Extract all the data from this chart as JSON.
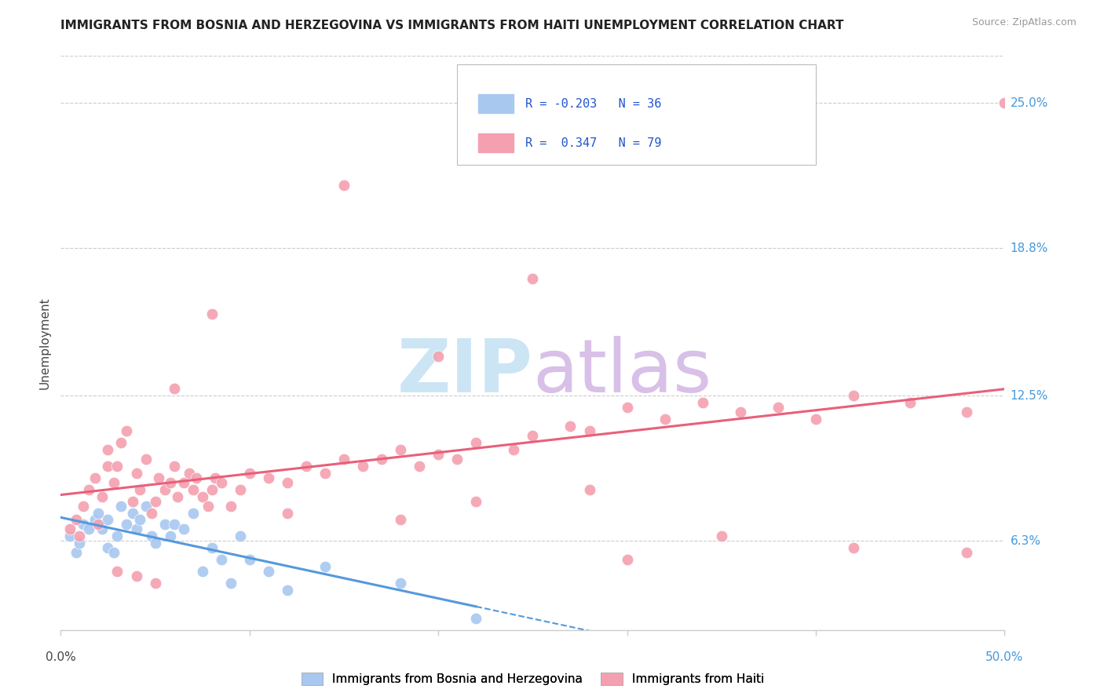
{
  "title": "IMMIGRANTS FROM BOSNIA AND HERZEGOVINA VS IMMIGRANTS FROM HAITI UNEMPLOYMENT CORRELATION CHART",
  "source": "Source: ZipAtlas.com",
  "ylabel": "Unemployment",
  "yticks": [
    6.3,
    12.5,
    18.8,
    25.0
  ],
  "ytick_labels": [
    "6.3%",
    "12.5%",
    "18.8%",
    "25.0%"
  ],
  "xmin": 0.0,
  "xmax": 0.5,
  "ymin": 2.5,
  "ymax": 27.0,
  "bosnia_color": "#a8c8f0",
  "haiti_color": "#f4a0b0",
  "bosnia_line_color": "#5599dd",
  "haiti_line_color": "#e8607a",
  "legend_text_color": "#2255cc",
  "ytick_color": "#4499dd",
  "source_color": "#999999",
  "title_color": "#222222",
  "grid_color": "#cccccc",
  "watermark_zip_color": "#cce5f5",
  "watermark_atlas_color": "#d8c0e8",
  "bosnia_scatter_x": [
    0.005,
    0.008,
    0.01,
    0.012,
    0.015,
    0.018,
    0.02,
    0.022,
    0.025,
    0.025,
    0.028,
    0.03,
    0.032,
    0.035,
    0.038,
    0.04,
    0.042,
    0.045,
    0.048,
    0.05,
    0.055,
    0.058,
    0.06,
    0.065,
    0.07,
    0.075,
    0.08,
    0.085,
    0.09,
    0.095,
    0.1,
    0.11,
    0.12,
    0.14,
    0.18,
    0.22
  ],
  "bosnia_scatter_y": [
    6.5,
    5.8,
    6.2,
    7.0,
    6.8,
    7.2,
    7.5,
    6.8,
    6.0,
    7.2,
    5.8,
    6.5,
    7.8,
    7.0,
    7.5,
    6.8,
    7.2,
    7.8,
    6.5,
    6.2,
    7.0,
    6.5,
    7.0,
    6.8,
    7.5,
    5.0,
    6.0,
    5.5,
    4.5,
    6.5,
    5.5,
    5.0,
    4.2,
    5.2,
    4.5,
    3.0
  ],
  "haiti_scatter_x": [
    0.005,
    0.008,
    0.01,
    0.012,
    0.015,
    0.018,
    0.02,
    0.022,
    0.025,
    0.025,
    0.028,
    0.03,
    0.032,
    0.035,
    0.038,
    0.04,
    0.042,
    0.045,
    0.048,
    0.05,
    0.052,
    0.055,
    0.058,
    0.06,
    0.062,
    0.065,
    0.068,
    0.07,
    0.072,
    0.075,
    0.078,
    0.08,
    0.082,
    0.085,
    0.09,
    0.095,
    0.1,
    0.11,
    0.12,
    0.13,
    0.14,
    0.15,
    0.16,
    0.17,
    0.18,
    0.19,
    0.2,
    0.21,
    0.22,
    0.24,
    0.25,
    0.27,
    0.28,
    0.3,
    0.32,
    0.34,
    0.36,
    0.38,
    0.4,
    0.42,
    0.45,
    0.48,
    0.3,
    0.35,
    0.42,
    0.2,
    0.25,
    0.15,
    0.08,
    0.06,
    0.05,
    0.04,
    0.03,
    0.18,
    0.12,
    0.22,
    0.28,
    0.5,
    0.48
  ],
  "haiti_scatter_y": [
    6.8,
    7.2,
    6.5,
    7.8,
    8.5,
    9.0,
    7.0,
    8.2,
    9.5,
    10.2,
    8.8,
    9.5,
    10.5,
    11.0,
    8.0,
    9.2,
    8.5,
    9.8,
    7.5,
    8.0,
    9.0,
    8.5,
    8.8,
    9.5,
    8.2,
    8.8,
    9.2,
    8.5,
    9.0,
    8.2,
    7.8,
    8.5,
    9.0,
    8.8,
    7.8,
    8.5,
    9.2,
    9.0,
    8.8,
    9.5,
    9.2,
    9.8,
    9.5,
    9.8,
    10.2,
    9.5,
    10.0,
    9.8,
    10.5,
    10.2,
    10.8,
    11.2,
    11.0,
    12.0,
    11.5,
    12.2,
    11.8,
    12.0,
    11.5,
    12.5,
    12.2,
    11.8,
    5.5,
    6.5,
    6.0,
    14.2,
    17.5,
    21.5,
    16.0,
    12.8,
    4.5,
    4.8,
    5.0,
    7.2,
    7.5,
    8.0,
    8.5,
    25.0,
    5.8
  ],
  "xtick_positions": [
    0.0,
    0.1,
    0.2,
    0.3,
    0.4,
    0.5
  ]
}
